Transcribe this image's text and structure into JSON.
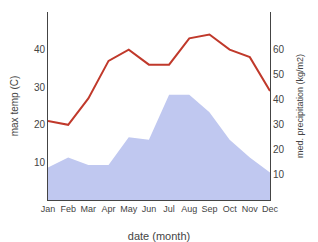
{
  "chart_data": {
    "type": "line",
    "categories": [
      "Jan",
      "Feb",
      "Mar",
      "Apr",
      "May",
      "Jun",
      "Jul",
      "Aug",
      "Sep",
      "Oct",
      "Nov",
      "Dec"
    ],
    "series": [
      {
        "type": "area",
        "color": "#c0c8f0",
        "axis": "y2",
        "values": [
          13,
          17,
          14,
          14,
          25,
          24,
          42,
          42,
          35,
          24,
          17,
          11
        ]
      },
      {
        "type": "line",
        "color": "#c0392b",
        "values": [
          21,
          20,
          27,
          37,
          40,
          36,
          36,
          43,
          44,
          40,
          38,
          29
        ]
      }
    ],
    "xlabel": "date (month)",
    "ylabel": "max temp (C)",
    "y2label": "med. precipitation (kg/m2)",
    "ylim": [
      0,
      50
    ],
    "yticks": [
      10,
      20,
      30,
      40
    ],
    "y2lim": [
      0,
      75
    ],
    "y2ticks": [
      10,
      20,
      30,
      40,
      50,
      60
    ],
    "grid": false
  }
}
